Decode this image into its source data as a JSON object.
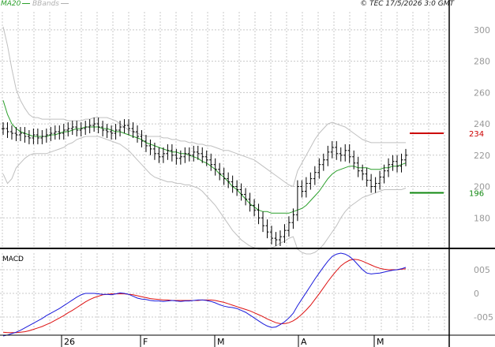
{
  "header": {
    "ma_legend": "MA20",
    "bb_legend": "BBands",
    "copyright": "© TEC 17/5/2026 3:0 GMT"
  },
  "colors": {
    "price": "#000000",
    "ma": "#2ca02c",
    "bbands": "#c0c0c0",
    "resistance": "#cc0000",
    "support": "#118811",
    "macd": "#1a1adb",
    "signal": "#dd1111",
    "grid": "#c8c8c8"
  },
  "chart_data": [
    {
      "type": "line",
      "subtype": "ohlc-bars-with-moving-average-and-bollinger-bands",
      "x_tick_labels": [
        "26",
        "F",
        "M",
        "A",
        "M"
      ],
      "ylim": [
        160,
        310
      ],
      "y_ticks": [
        180,
        200,
        220,
        240,
        260,
        280,
        300
      ],
      "grid": true,
      "levels": [
        {
          "label": "234",
          "value": 234,
          "role": "resistance"
        },
        {
          "label": "196",
          "value": 196,
          "role": "support"
        }
      ],
      "close": [
        237,
        235,
        234,
        233,
        234,
        232,
        231,
        233,
        231,
        232,
        233,
        234,
        235,
        234,
        236,
        237,
        238,
        236,
        237,
        238,
        239,
        240,
        238,
        236,
        235,
        234,
        236,
        238,
        239,
        237,
        235,
        232,
        229,
        226,
        224,
        221,
        219,
        221,
        223,
        220,
        218,
        219,
        221,
        220,
        222,
        221,
        219,
        217,
        214,
        211,
        208,
        205,
        203,
        200,
        198,
        195,
        192,
        188,
        185,
        180,
        175,
        171,
        167,
        166,
        168,
        172,
        177,
        182,
        200,
        197,
        202,
        205,
        209,
        214,
        217,
        222,
        225,
        221,
        220,
        223,
        219,
        215,
        210,
        208,
        204,
        200,
        202,
        206,
        210,
        214,
        216,
        213,
        217,
        220
      ],
      "ma20": [
        255,
        246,
        240,
        237,
        235,
        234,
        233,
        232,
        232,
        232,
        232,
        233,
        233,
        234,
        235,
        235,
        236,
        237,
        237,
        238,
        238,
        238,
        238,
        237,
        237,
        236,
        235,
        235,
        234,
        233,
        232,
        231,
        230,
        228,
        227,
        226,
        225,
        224,
        223,
        222,
        222,
        221,
        221,
        220,
        219,
        218,
        216,
        215,
        213,
        211,
        208,
        206,
        203,
        200,
        198,
        195,
        192,
        189,
        187,
        185,
        184,
        184,
        183,
        183,
        183,
        183,
        183,
        184,
        185,
        186,
        188,
        191,
        194,
        197,
        201,
        205,
        208,
        210,
        211,
        212,
        213,
        213,
        212,
        212,
        212,
        211,
        211,
        211,
        212,
        212,
        213,
        213,
        214,
        215
      ],
      "bb_upper": [
        302,
        290,
        275,
        262,
        255,
        250,
        246,
        244,
        244,
        243,
        243,
        243,
        243,
        243,
        243,
        242,
        242,
        242,
        242,
        243,
        243,
        244,
        244,
        244,
        244,
        243,
        242,
        240,
        238,
        236,
        235,
        234,
        233,
        232,
        232,
        232,
        232,
        231,
        231,
        230,
        230,
        229,
        229,
        228,
        228,
        227,
        227,
        226,
        226,
        225,
        224,
        223,
        223,
        222,
        221,
        220,
        219,
        218,
        217,
        215,
        213,
        211,
        209,
        207,
        205,
        203,
        201,
        200,
        210,
        215,
        220,
        225,
        230,
        234,
        237,
        240,
        241,
        240,
        239,
        238,
        236,
        234,
        232,
        230,
        229,
        228,
        228,
        228,
        228,
        228,
        228,
        228,
        228,
        228
      ],
      "bb_lower": [
        208,
        202,
        205,
        212,
        215,
        218,
        220,
        221,
        221,
        221,
        221,
        222,
        223,
        224,
        225,
        227,
        228,
        230,
        231,
        232,
        232,
        232,
        232,
        231,
        230,
        229,
        228,
        227,
        225,
        223,
        220,
        217,
        214,
        211,
        208,
        206,
        205,
        204,
        203,
        203,
        202,
        202,
        201,
        201,
        200,
        199,
        197,
        194,
        191,
        188,
        184,
        180,
        176,
        172,
        169,
        166,
        164,
        162,
        161,
        160,
        160,
        160,
        161,
        162,
        164,
        165,
        167,
        168,
        160,
        158,
        157,
        157,
        158,
        160,
        163,
        167,
        171,
        175,
        180,
        184,
        187,
        189,
        191,
        193,
        194,
        195,
        196,
        197,
        198,
        198,
        198,
        198,
        198,
        199
      ]
    },
    {
      "type": "line",
      "title": "MACD",
      "ylim": [
        -0.08,
        0.09
      ],
      "y_tick_labels": [
        "005",
        "0",
        "-005"
      ],
      "y_tick_values": [
        0.05,
        0,
        -0.05
      ],
      "series": [
        {
          "name": "MACD",
          "values": [
            -0.09,
            -0.088,
            -0.085,
            -0.082,
            -0.078,
            -0.073,
            -0.068,
            -0.063,
            -0.058,
            -0.053,
            -0.047,
            -0.042,
            -0.037,
            -0.032,
            -0.026,
            -0.02,
            -0.014,
            -0.008,
            -0.003,
            0.0,
            0.0,
            0.0,
            -0.001,
            -0.002,
            -0.002,
            -0.003,
            -0.001,
            0.001,
            0.0,
            -0.002,
            -0.006,
            -0.01,
            -0.012,
            -0.013,
            -0.015,
            -0.016,
            -0.016,
            -0.017,
            -0.016,
            -0.015,
            -0.016,
            -0.017,
            -0.016,
            -0.016,
            -0.015,
            -0.014,
            -0.014,
            -0.015,
            -0.017,
            -0.02,
            -0.024,
            -0.027,
            -0.029,
            -0.03,
            -0.032,
            -0.036,
            -0.04,
            -0.046,
            -0.052,
            -0.058,
            -0.064,
            -0.069,
            -0.072,
            -0.071,
            -0.066,
            -0.06,
            -0.052,
            -0.042,
            -0.026,
            -0.012,
            0.002,
            0.016,
            0.03,
            0.043,
            0.056,
            0.068,
            0.078,
            0.083,
            0.085,
            0.083,
            0.078,
            0.07,
            0.06,
            0.05,
            0.043,
            0.041,
            0.042,
            0.043,
            0.045,
            0.047,
            0.049,
            0.05,
            0.052,
            0.055
          ]
        },
        {
          "name": "Signal",
          "values": [
            -0.082,
            -0.083,
            -0.083,
            -0.083,
            -0.082,
            -0.081,
            -0.079,
            -0.076,
            -0.073,
            -0.07,
            -0.066,
            -0.062,
            -0.057,
            -0.052,
            -0.047,
            -0.041,
            -0.036,
            -0.03,
            -0.024,
            -0.018,
            -0.013,
            -0.009,
            -0.006,
            -0.003,
            -0.002,
            -0.001,
            -0.001,
            -0.001,
            -0.001,
            -0.002,
            -0.003,
            -0.005,
            -0.007,
            -0.009,
            -0.011,
            -0.012,
            -0.013,
            -0.014,
            -0.014,
            -0.015,
            -0.015,
            -0.015,
            -0.015,
            -0.015,
            -0.015,
            -0.015,
            -0.014,
            -0.014,
            -0.014,
            -0.015,
            -0.017,
            -0.019,
            -0.022,
            -0.025,
            -0.028,
            -0.031,
            -0.034,
            -0.037,
            -0.041,
            -0.045,
            -0.049,
            -0.054,
            -0.058,
            -0.062,
            -0.064,
            -0.064,
            -0.062,
            -0.058,
            -0.052,
            -0.044,
            -0.035,
            -0.025,
            -0.013,
            -0.001,
            0.012,
            0.025,
            0.037,
            0.048,
            0.058,
            0.065,
            0.07,
            0.072,
            0.071,
            0.068,
            0.064,
            0.06,
            0.056,
            0.053,
            0.051,
            0.05,
            0.05,
            0.05,
            0.051,
            0.052
          ]
        }
      ]
    }
  ]
}
